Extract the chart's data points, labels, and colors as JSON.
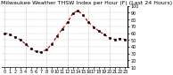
{
  "title": "Milwaukee Weather THSW Index per Hour (F) (Last 24 Hours)",
  "hours": [
    0,
    1,
    2,
    3,
    4,
    5,
    6,
    7,
    8,
    9,
    10,
    11,
    12,
    13,
    14,
    15,
    16,
    17,
    18,
    19,
    20,
    21,
    22,
    23
  ],
  "values": [
    60,
    58,
    54,
    50,
    44,
    37,
    33,
    32,
    36,
    44,
    56,
    66,
    76,
    89,
    93,
    86,
    76,
    69,
    63,
    58,
    53,
    51,
    52,
    51
  ],
  "line_color": "#cc0000",
  "marker_color": "#000000",
  "bg_color": "#ffffff",
  "plot_bg_color": "#ffffff",
  "grid_color": "#888888",
  "ylim_min": 10,
  "ylim_max": 100,
  "yticks": [
    10,
    20,
    30,
    40,
    50,
    60,
    70,
    80,
    90,
    100
  ],
  "ytick_labels": [
    "10",
    "20",
    "30",
    "40",
    "50",
    "60",
    "70",
    "80",
    "90",
    "100"
  ],
  "vgrid_positions": [
    0,
    4,
    8,
    12,
    16,
    20
  ],
  "title_fontsize": 4.5,
  "tick_fontsize": 3.5
}
